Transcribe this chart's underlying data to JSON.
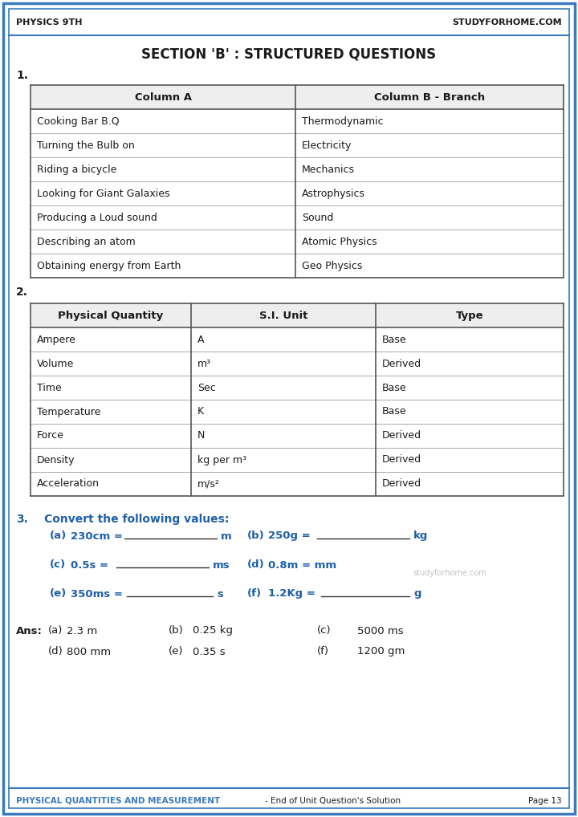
{
  "title": "SECTION 'B' : STRUCTURED QUESTIONS",
  "header_left": "PHYSICS 9TH",
  "header_right": "STUDYFORHOME.COM",
  "footer_left": "PHYSICAL QUANTITIES AND MEASUREMENT",
  "footer_middle": "- End of Unit Question's Solution",
  "footer_right": "Page 13",
  "watermark": "studyforhome.com",
  "bg_color": "#ffffff",
  "border_color": "#3a7abf",
  "title_color": "#1a1a1a",
  "q3_label_color": "#1e5fa8",
  "table1": {
    "q_num": "1.",
    "col_a_header": "Column A",
    "col_b_header": "Column B - Branch",
    "rows": [
      [
        "Cooking Bar B.Q",
        "Thermodynamic"
      ],
      [
        "Turning the Bulb on",
        "Electricity"
      ],
      [
        "Riding a bicycle",
        "Mechanics"
      ],
      [
        "Looking for Giant Galaxies",
        "Astrophysics"
      ],
      [
        "Producing a Loud sound",
        "Sound"
      ],
      [
        "Describing an atom",
        "Atomic Physics"
      ],
      [
        "Obtaining energy from Earth",
        "Geo Physics"
      ]
    ]
  },
  "table2": {
    "q_num": "2.",
    "col1_header": "Physical Quantity",
    "col2_header": "S.I. Unit",
    "col3_header": "Type",
    "rows": [
      [
        "Ampere",
        "A",
        "Base"
      ],
      [
        "Volume",
        "m³",
        "Derived"
      ],
      [
        "Time",
        "Sec",
        "Base"
      ],
      [
        "Temperature",
        "K",
        "Base"
      ],
      [
        "Force",
        "N",
        "Derived"
      ],
      [
        "Density",
        "kg per m³",
        "Derived"
      ],
      [
        "Acceleration",
        "m/s²",
        "Derived"
      ]
    ]
  },
  "q3": {
    "q_num": "3.",
    "label": "Convert the following values:",
    "ans_label": "Ans:",
    "ans_rows": [
      [
        "(a)",
        "2.3 m",
        "(b)",
        "0.25 kg",
        "(c)",
        "5000 ms"
      ],
      [
        "(d)",
        "800 mm",
        "(e)",
        "0.35 s",
        "(f)",
        "1200 gm"
      ]
    ]
  }
}
